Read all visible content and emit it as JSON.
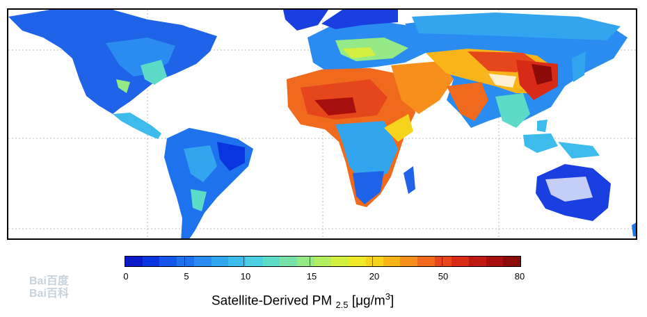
{
  "legend": {
    "title_main": "Satellite-Derived PM",
    "title_sub": "2.5",
    "title_units_pre": "[μg/m",
    "title_units_sup": "3",
    "title_units_post": "]",
    "ticks": [
      "0",
      "5",
      "10",
      "15",
      "20",
      "50",
      "80"
    ],
    "colors": [
      "#0a19c8",
      "#0a34de",
      "#1655ea",
      "#1f72ee",
      "#2a8cf0",
      "#33a5ef",
      "#3dbcec",
      "#49d0e2",
      "#5ddbc9",
      "#77e3a8",
      "#95e986",
      "#b3ee62",
      "#d3ef3f",
      "#eee92a",
      "#f7d41c",
      "#f9b41a",
      "#f78f1c",
      "#f06a1d",
      "#e6461c",
      "#d82b17",
      "#c01812",
      "#a60f0d",
      "#8c0a08"
    ]
  },
  "watermark": {
    "line1": "Bai百度",
    "line2": "Bai百科"
  },
  "colors": {
    "low": "#1a3fe0",
    "mid": "#f0e830",
    "high": "#b01010"
  }
}
